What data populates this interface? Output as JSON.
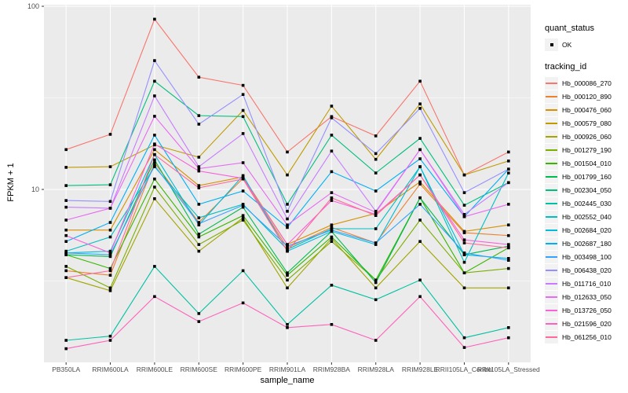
{
  "axes": {
    "ylabel": "FPKM + 1",
    "xlabel": "sample_name"
  },
  "legend": {
    "quant_status_title": "quant_status",
    "quant_status_items": [
      {
        "label": "OK",
        "symbol": "point"
      }
    ],
    "tracking_id_title": "tracking_id"
  },
  "chart_data": {
    "type": "line",
    "title": "",
    "xlabel": "sample_name",
    "ylabel": "FPKM + 1",
    "yscale": "log10",
    "ylim": [
      1.14,
      103
    ],
    "yticks_major": [
      10,
      100
    ],
    "yticks_minor": [
      3.1623,
      31.623
    ],
    "ytick_labels": [
      "10",
      "100"
    ],
    "grid": "white-on-gray",
    "legend_position": "right",
    "panel_color": "#EBEBEB",
    "point_color": "#000000",
    "categories": [
      "PB350LA",
      "RRIM600LA",
      "RRIM600LE",
      "RRIM600SE",
      "RRIM600PE",
      "RRIM901LA",
      "RRIM928BA",
      "RRIM928LA",
      "RRIM928LE",
      "RRII105LA_Control",
      "RRII105LA_Stressed"
    ],
    "series": [
      {
        "name": "Hb_000086_270",
        "color": "#F8766D",
        "values": [
          16.5,
          20,
          85,
          41,
          37,
          16,
          25,
          19.6,
          39,
          12,
          16
        ]
      },
      {
        "name": "Hb_000120_890",
        "color": "#EA8331",
        "values": [
          3.6,
          3.4,
          14,
          6.6,
          11.5,
          4.8,
          6.2,
          5.1,
          10.7,
          5.8,
          5.6
        ]
      },
      {
        "name": "Hb_000476_060",
        "color": "#D89000",
        "values": [
          6.0,
          6.0,
          16.5,
          10.5,
          11.7,
          5.0,
          6.4,
          7.4,
          11.0,
          5.9,
          6.4
        ]
      },
      {
        "name": "Hb_000579_080",
        "color": "#C09B00",
        "values": [
          13.2,
          13.3,
          17.5,
          15.0,
          27.0,
          12.0,
          28.5,
          14.6,
          29.3,
          12.0,
          14.3
        ]
      },
      {
        "name": "Hb_000926_060",
        "color": "#A3A500",
        "values": [
          3.3,
          2.8,
          8.9,
          4.6,
          7.0,
          2.9,
          5.4,
          2.9,
          5.2,
          2.9,
          2.9
        ]
      },
      {
        "name": "Hb_001279_190",
        "color": "#7CAE00",
        "values": [
          3.8,
          2.9,
          10.3,
          5.0,
          6.8,
          3.2,
          5.2,
          3.2,
          6.8,
          3.5,
          3.7
        ]
      },
      {
        "name": "Hb_001504_010",
        "color": "#39B600",
        "values": [
          4.4,
          3.7,
          11.4,
          5.5,
          7.2,
          3.4,
          5.5,
          3.2,
          9.0,
          3.5,
          4.8
        ]
      },
      {
        "name": "Hb_001799_160",
        "color": "#00BB4E",
        "values": [
          4.4,
          4.3,
          14.5,
          5.7,
          8.0,
          3.5,
          5.9,
          3.1,
          9.0,
          4.4,
          4.9
        ]
      },
      {
        "name": "Hb_002304_050",
        "color": "#00BF7D",
        "values": [
          10.5,
          10.6,
          39,
          25.3,
          25,
          8.3,
          19.8,
          12.3,
          19,
          8.2,
          10.9
        ]
      },
      {
        "name": "Hb_002445_030",
        "color": "#00C1A3",
        "values": [
          1.5,
          1.58,
          3.8,
          2.1,
          3.6,
          1.83,
          3.0,
          2.5,
          3.2,
          1.55,
          1.76
        ]
      },
      {
        "name": "Hb_002552_040",
        "color": "#00BFC4",
        "values": [
          4.6,
          5.5,
          13.3,
          7.0,
          8.3,
          4.7,
          6.1,
          6.1,
          13.3,
          4.0,
          12.3
        ]
      },
      {
        "name": "Hb_002684_020",
        "color": "#00BBDA",
        "values": [
          4.5,
          4.6,
          15.5,
          6.4,
          11.9,
          4.6,
          5.9,
          5.0,
          13.3,
          4.4,
          4.2
        ]
      },
      {
        "name": "Hb_002687_180",
        "color": "#00B0F6",
        "values": [
          5.2,
          6.6,
          19.8,
          8.3,
          9.8,
          6.2,
          12.5,
          9.8,
          14.7,
          7.1,
          12.9
        ]
      },
      {
        "name": "Hb_003498_100",
        "color": "#35A2FF",
        "values": [
          4.5,
          4.4,
          13.5,
          6.5,
          8.2,
          4.9,
          6.0,
          5.1,
          8.3,
          4.5,
          4.1
        ]
      },
      {
        "name": "Hb_006438_020",
        "color": "#9590FF",
        "values": [
          8.7,
          8.6,
          50.5,
          22.7,
          33,
          7.6,
          24.6,
          15.7,
          27.7,
          9.6,
          12.9
        ]
      },
      {
        "name": "Hb_011716_010",
        "color": "#C77CFF",
        "values": [
          8.0,
          7.9,
          32.4,
          13.3,
          20.2,
          6.9,
          16.2,
          7.6,
          16.5,
          7.3,
          10.9
        ]
      },
      {
        "name": "Hb_012633_050",
        "color": "#E76BF3",
        "values": [
          6.8,
          7.9,
          25.1,
          13.0,
          14.0,
          6.4,
          9.6,
          7.5,
          16.5,
          7.1,
          8.3
        ]
      },
      {
        "name": "Hb_013726_050",
        "color": "#FA62DB",
        "values": [
          5.6,
          4.5,
          17.7,
          12.6,
          11.5,
          5.0,
          8.7,
          7.3,
          12.0,
          5.3,
          5.0
        ]
      },
      {
        "name": "Hb_021596_020",
        "color": "#FF62BC",
        "values": [
          1.35,
          1.5,
          2.6,
          1.9,
          2.4,
          1.76,
          1.83,
          1.5,
          2.6,
          1.37,
          1.55
        ]
      },
      {
        "name": "Hb_061256_010",
        "color": "#FF6A98",
        "values": [
          3.3,
          3.6,
          15.5,
          10.2,
          11.4,
          4.6,
          9.0,
          7.2,
          12.0,
          5.1,
          4.8
        ]
      }
    ]
  }
}
